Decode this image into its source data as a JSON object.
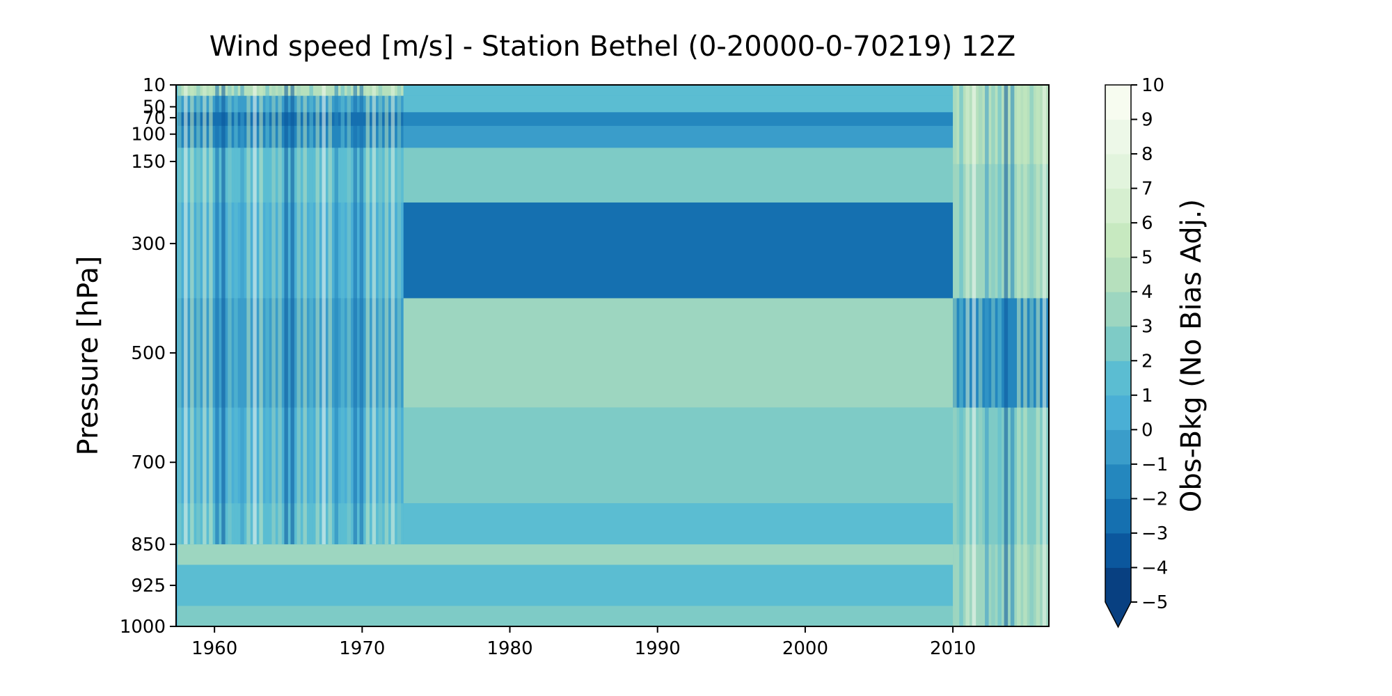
{
  "chart_data": {
    "type": "heatmap",
    "title": "Wind speed [m/s] - Station Bethel (0-20000-0-70219) 12Z",
    "xlabel": "",
    "ylabel": "Pressure [hPa]",
    "x_ticks": [
      1960,
      1970,
      1980,
      1990,
      2000,
      2010
    ],
    "xlim": [
      1957.4,
      2016.5
    ],
    "y_ticks": [
      10,
      50,
      70,
      100,
      150,
      300,
      500,
      700,
      850,
      925,
      1000
    ],
    "ylim": [
      1000,
      10
    ],
    "colorbar": {
      "label": "Obs-Bkg (No Bias Adj.)",
      "ticks": [
        10,
        9,
        8,
        7,
        6,
        5,
        4,
        3,
        2,
        1,
        0,
        -1,
        -2,
        -3,
        -4,
        -5
      ],
      "tick_labels": [
        "10",
        "9",
        "8",
        "7",
        "6",
        "5",
        "4",
        "3",
        "2",
        "1",
        "0",
        "−1",
        "−2",
        "−3",
        "−4",
        "−5"
      ],
      "range": [
        -5,
        10
      ],
      "extend": "min",
      "colormap": "GnBu reversed",
      "colors": [
        "#084081",
        "#0b579d",
        "#1570b0",
        "#2487be",
        "#3a9dca",
        "#4aafd5",
        "#5bbdd2",
        "#7ecbc6",
        "#9dd6c0",
        "#b6e0bd",
        "#c7e9c0",
        "#d6efd0",
        "#e2f4dd",
        "#edf8e8",
        "#f7fcf0"
      ]
    },
    "series": [
      {
        "period": [
          1957.5,
          1972.8
        ],
        "pressure_range": [
          10,
          850
        ],
        "pattern": "high-variability vertical bands",
        "levels": [
          10,
          50,
          70,
          100,
          150,
          300,
          500,
          700,
          850
        ],
        "values": [
          4,
          -1,
          -3,
          -2,
          1,
          0,
          -1,
          0,
          1
        ]
      },
      {
        "period": [
          1972.8,
          2010
        ],
        "pressure_range": [
          10,
          850
        ],
        "pattern": "smooth layered",
        "levels": [
          10,
          50,
          70,
          100,
          150,
          300,
          500,
          700,
          850
        ],
        "values": [
          1,
          1,
          -2,
          -1,
          2,
          -3,
          3,
          2,
          1
        ]
      },
      {
        "period": [
          1957.5,
          2010
        ],
        "pressure_range": [
          850,
          1000
        ],
        "pattern": "wedge tapering toward 2008",
        "levels": [
          850,
          925,
          1000
        ],
        "values": [
          3,
          1,
          2
        ]
      },
      {
        "period": [
          2010,
          2016.5
        ],
        "pressure_range": [
          10,
          1000
        ],
        "pattern": "high-variability vertical bands",
        "levels": [
          10,
          300,
          500,
          700,
          1000
        ],
        "values": [
          4,
          3,
          -2,
          2,
          3
        ]
      }
    ]
  }
}
